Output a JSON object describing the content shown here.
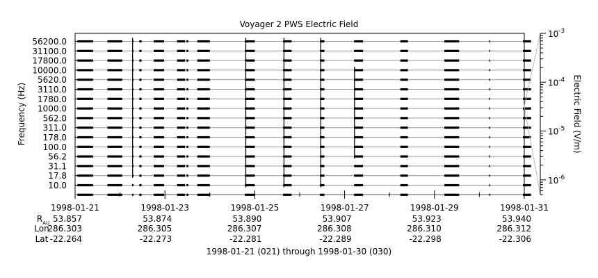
{
  "chart_data": {
    "type": "spectrogram",
    "title": "Voyager 2 PWS Electric Field",
    "ylabel": "Frequency (Hz)",
    "colorbar_label": "Electric Field (V/m)",
    "x_range": [
      "1998-01-21",
      "1998-01-31"
    ],
    "x_tick_labels": [
      "1998-01-21",
      "1998-01-23",
      "1998-01-25",
      "1998-01-27",
      "1998-01-29",
      "1998-01-31"
    ],
    "x_minor_ticks_days": [
      1,
      3,
      5,
      7,
      9
    ],
    "channel_labels": [
      "56200.0",
      "31100.0",
      "17800.0",
      "10000.0",
      "5620.0",
      "3110.0",
      "1780.0",
      "1000.0",
      "562.0",
      "311.0",
      "178.0",
      "100.0",
      "56.2",
      "31.1",
      "17.8",
      "10.0"
    ],
    "colorbar_ticks": [
      {
        "base": "10",
        "exp": "-3",
        "value": 0.001
      },
      {
        "base": "10",
        "exp": "-4",
        "value": 0.0001
      },
      {
        "base": "10",
        "exp": "-5",
        "value": 1e-05
      },
      {
        "base": "10",
        "exp": "-6",
        "value": 1e-06
      }
    ],
    "colorbar_range": [
      5e-07,
      0.001
    ],
    "colorbar_scale": "log",
    "data_intervals_days": [
      [
        0.05,
        0.4
      ],
      [
        0.72,
        1.05
      ],
      [
        1.27,
        1.3
      ],
      [
        1.43,
        1.48
      ],
      [
        1.75,
        1.98
      ],
      [
        2.27,
        2.45
      ],
      [
        2.48,
        2.52
      ],
      [
        2.72,
        3.0
      ],
      [
        3.78,
        4.0
      ],
      [
        4.63,
        4.82
      ],
      [
        5.45,
        5.55
      ],
      [
        6.21,
        6.41
      ],
      [
        7.24,
        7.41
      ],
      [
        8.22,
        8.55
      ],
      [
        9.22,
        9.24
      ],
      [
        9.97,
        10.15
      ]
    ],
    "spikes": [
      {
        "day": 1.28,
        "top_channel": 0,
        "bottom_channel": 14
      },
      {
        "day": 3.8,
        "top_channel": 0,
        "bottom_channel": 15
      },
      {
        "day": 4.65,
        "top_channel": 0,
        "bottom_channel": 15
      },
      {
        "day": 5.47,
        "top_channel": 0,
        "bottom_channel": 15
      },
      {
        "day": 6.22,
        "top_channel": 3,
        "bottom_channel": 12
      }
    ],
    "ephemeris": {
      "row_labels": {
        "r_main": "R",
        "r_sub": "AU",
        "lon": "Lon",
        "lat": "Lat"
      },
      "R": [
        "53.857",
        "53.874",
        "53.890",
        "53.907",
        "53.923",
        "53.940"
      ],
      "Lon": [
        "286.303",
        "286.305",
        "286.307",
        "286.308",
        "286.310",
        "286.312"
      ],
      "Lat": [
        "-22.264",
        "-22.273",
        "-22.281",
        "-22.289",
        "-22.298",
        "-22.306"
      ]
    },
    "footer": "1998-01-21 (021) through 1998-01-30 (030)"
  }
}
